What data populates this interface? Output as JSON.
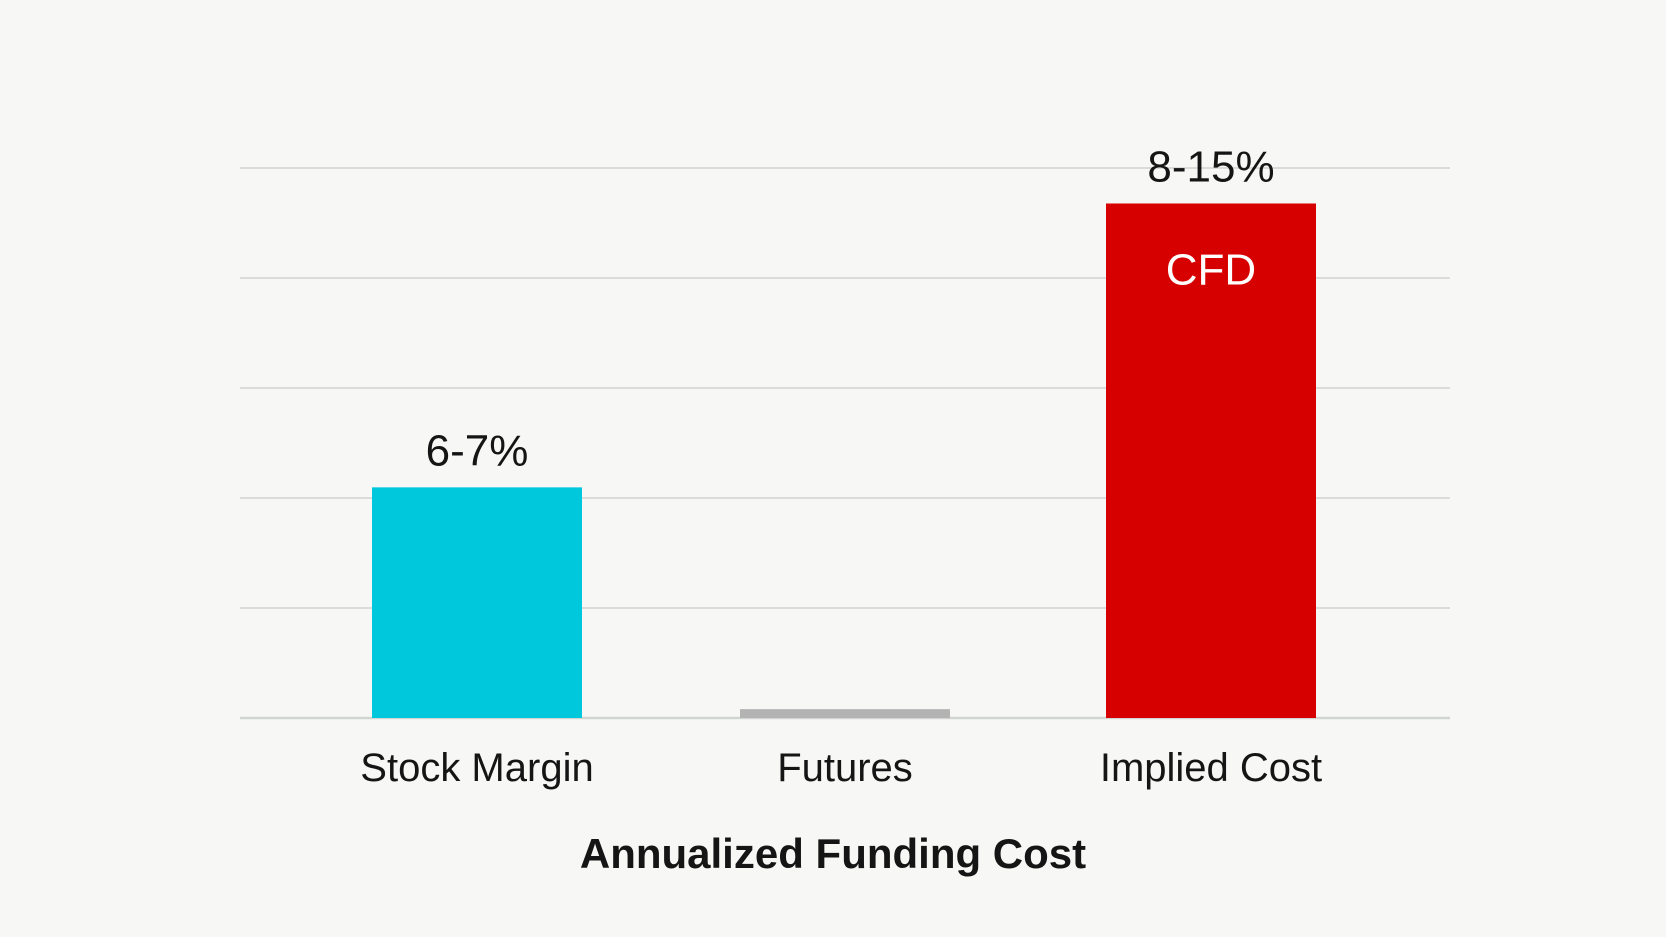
{
  "chart_data": {
    "type": "bar",
    "title": "",
    "xlabel": "Annualized Funding Cost",
    "ylabel": "",
    "ylim": [
      0,
      15.5
    ],
    "grid": true,
    "categories": [
      "Stock Margin",
      "Futures",
      "Implied Cost"
    ],
    "values": [
      6.5,
      0.25,
      14.5
    ],
    "value_labels": [
      "6-7%",
      "",
      "8-15%"
    ],
    "inbar_labels": [
      "",
      "",
      "CFD"
    ],
    "colors": [
      "#00c8dc",
      "#b3b3b3",
      "#d70000"
    ]
  }
}
